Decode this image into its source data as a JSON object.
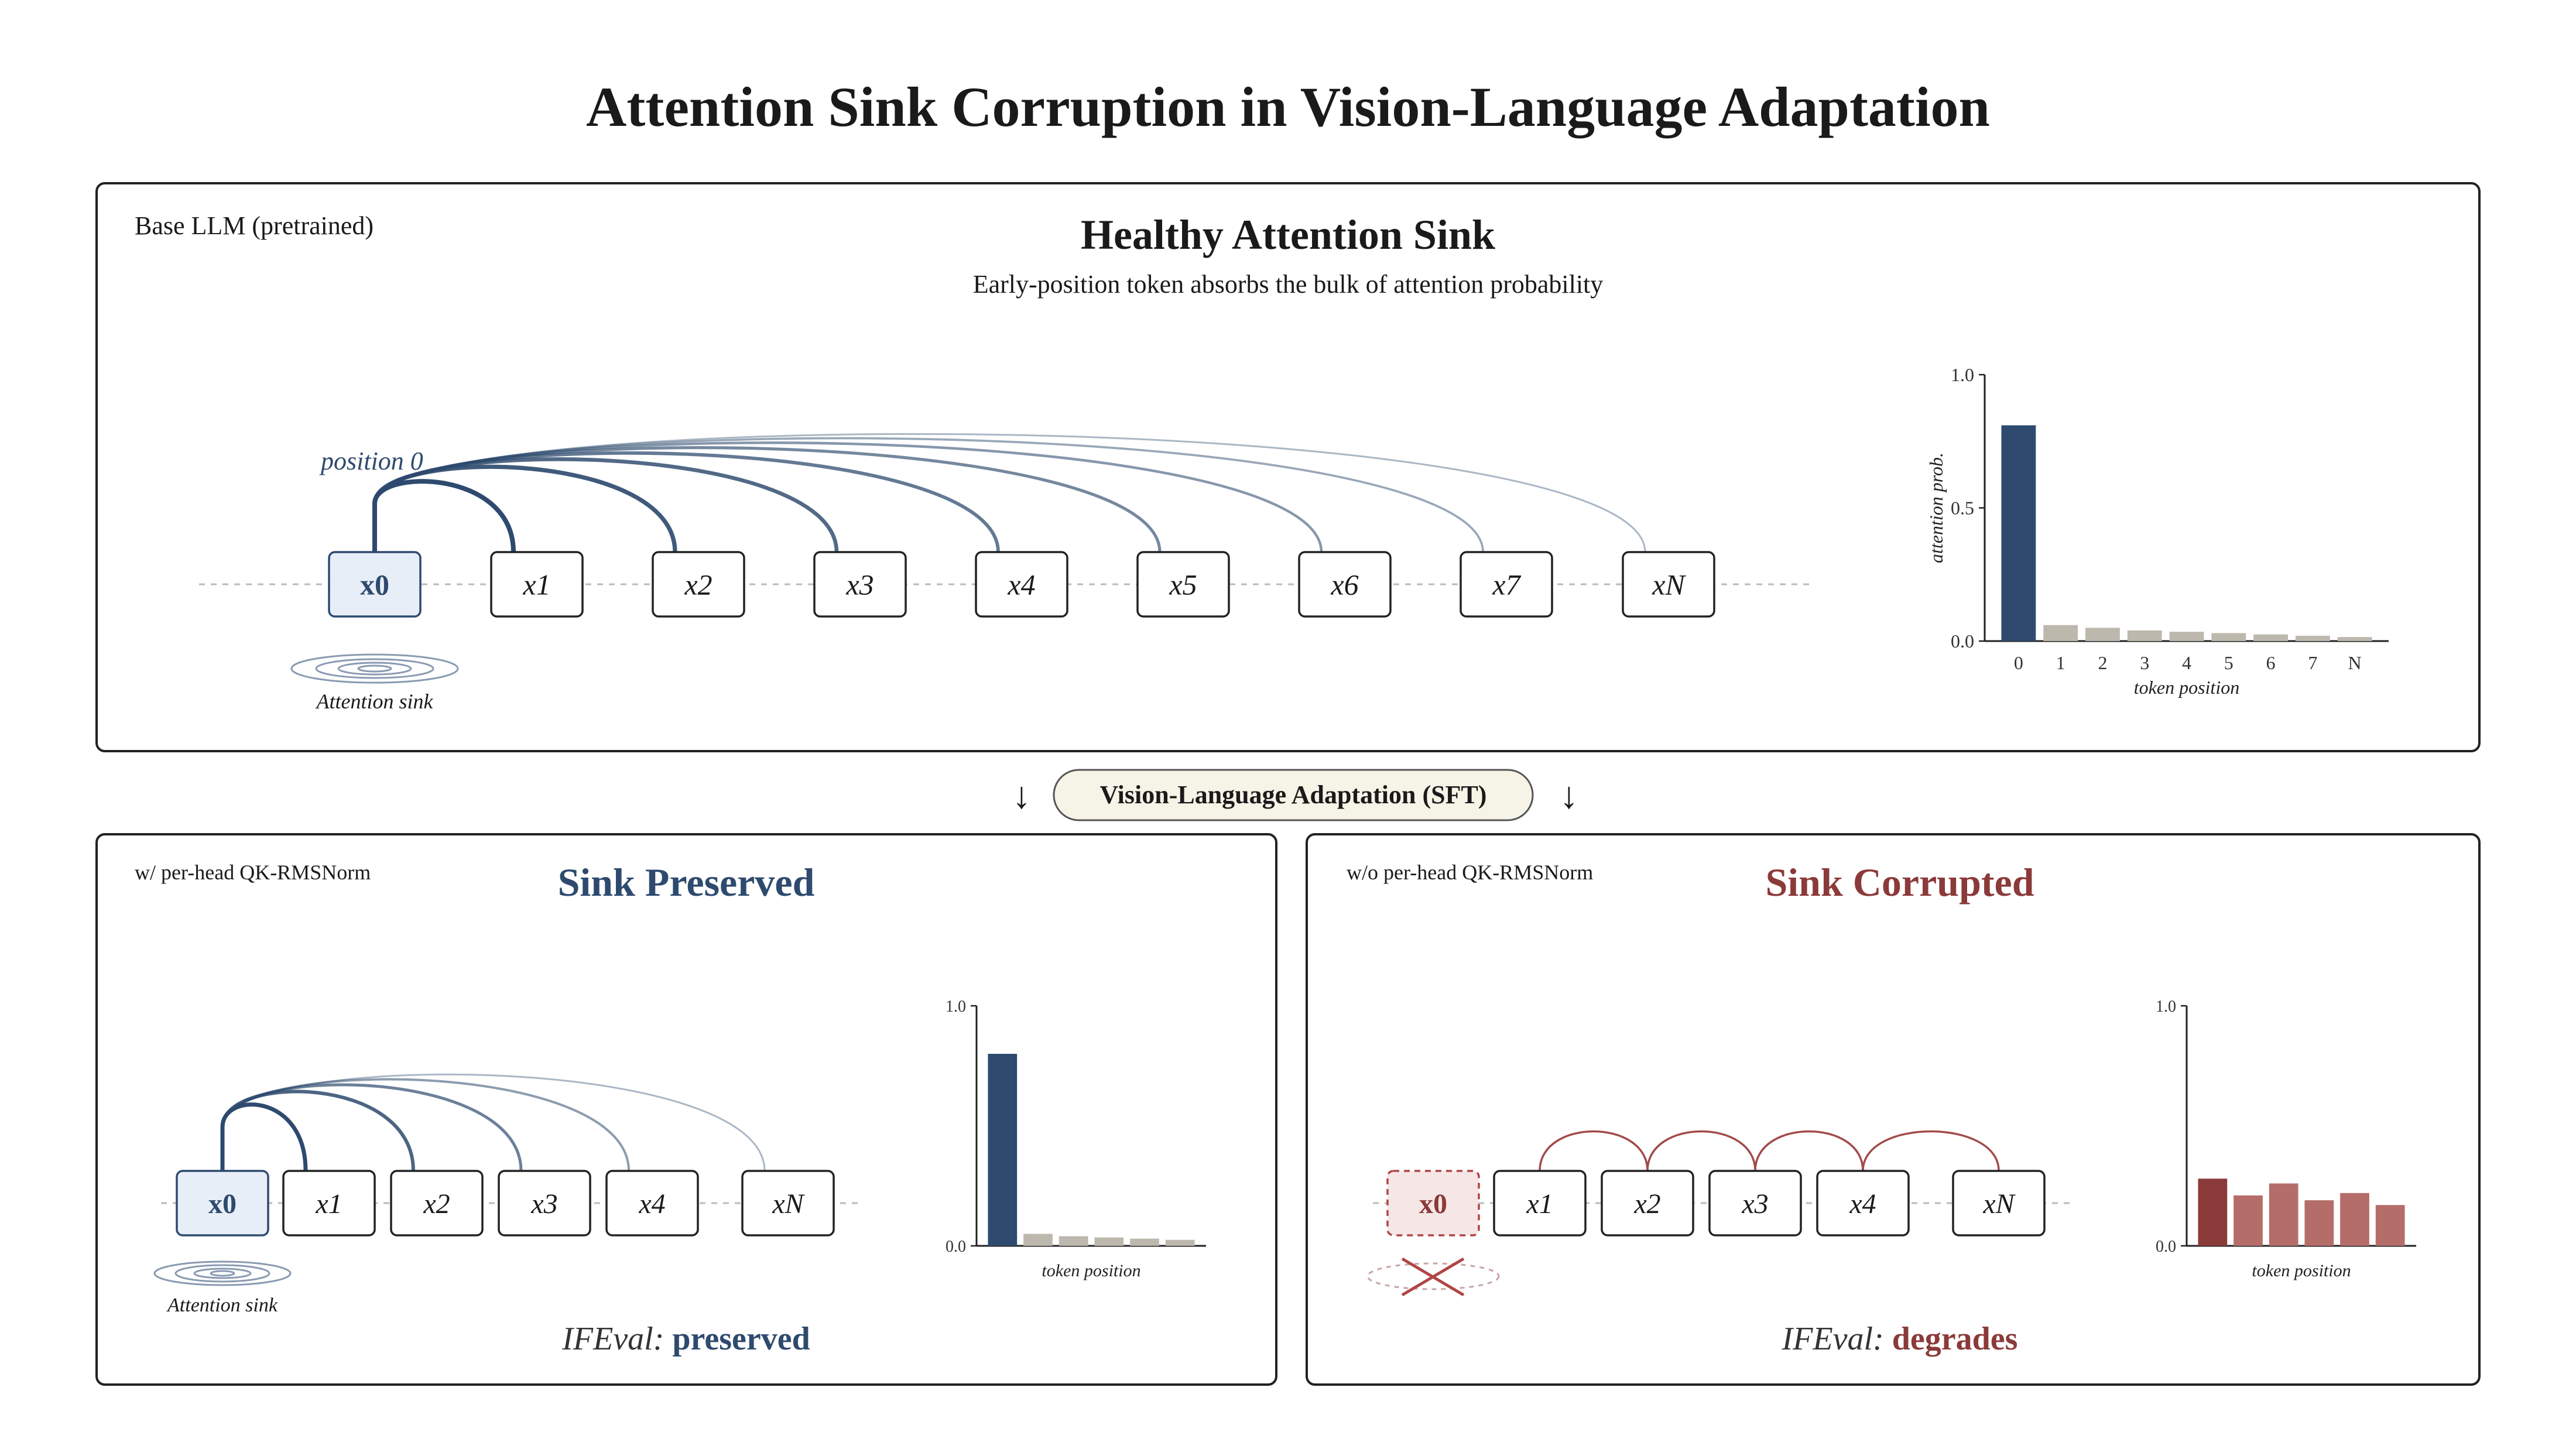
{
  "title": "Attention Sink Corruption in Vision-Language Adaptation",
  "colors": {
    "navy": "#2e4a6e",
    "sink_fill": "#e8eef7",
    "red": "#8b3a3a",
    "red_fill": "#f6e6e6",
    "gray_bar": "#bdb8ad",
    "red_bar": "#b56d6a",
    "pill_fill": "#f6f3e7"
  },
  "top": {
    "corner_label": "Base LLM (pretrained)",
    "heading": "Healthy Attention Sink",
    "subheading": "Early-position token absorbs the bulk of attention probability",
    "position_label": "position 0",
    "tokens": [
      "x0",
      "x1",
      "x2",
      "x3",
      "x4",
      "x5",
      "x6",
      "x7",
      "xN"
    ],
    "sink_label": "Attention sink",
    "chart": {
      "type": "bar",
      "categories": [
        "0",
        "1",
        "2",
        "3",
        "4",
        "5",
        "6",
        "7",
        "N"
      ],
      "values": [
        0.81,
        0.06,
        0.05,
        0.04,
        0.035,
        0.03,
        0.025,
        0.02,
        0.015
      ],
      "ylim": [
        0,
        1.0
      ],
      "yticks": [
        "0.0",
        "0.5",
        "1.0"
      ],
      "ylabel": "attention prob.",
      "xlabel": "token position"
    }
  },
  "transition": {
    "label": "Vision-Language Adaptation (SFT)",
    "left_arrow": "↓",
    "right_arrow": "↓"
  },
  "left": {
    "corner_label": "w/ per-head QK-RMSNorm",
    "heading": "Sink Preserved",
    "tokens": [
      "x0",
      "x1",
      "x2",
      "x3",
      "x4",
      "xN"
    ],
    "sink_label": "Attention sink",
    "result_prefix": "IFEval:",
    "result_value": "preserved",
    "chart": {
      "type": "bar",
      "values": [
        0.8,
        0.05,
        0.04,
        0.035,
        0.03,
        0.025
      ],
      "ylim": [
        0,
        1.0
      ],
      "yticks": [
        "0.0",
        "1.0"
      ],
      "xlabel": "token position"
    }
  },
  "right": {
    "corner_label": "w/o per-head QK-RMSNorm",
    "heading": "Sink Corrupted",
    "tokens": [
      "x0",
      "x1",
      "x2",
      "x3",
      "x4",
      "xN"
    ],
    "result_prefix": "IFEval:",
    "result_value": "degrades",
    "chart": {
      "type": "bar",
      "values": [
        0.28,
        0.21,
        0.26,
        0.19,
        0.22,
        0.17
      ],
      "ylim": [
        0,
        1.0
      ],
      "yticks": [
        "0.0",
        "1.0"
      ],
      "xlabel": "token position"
    }
  }
}
